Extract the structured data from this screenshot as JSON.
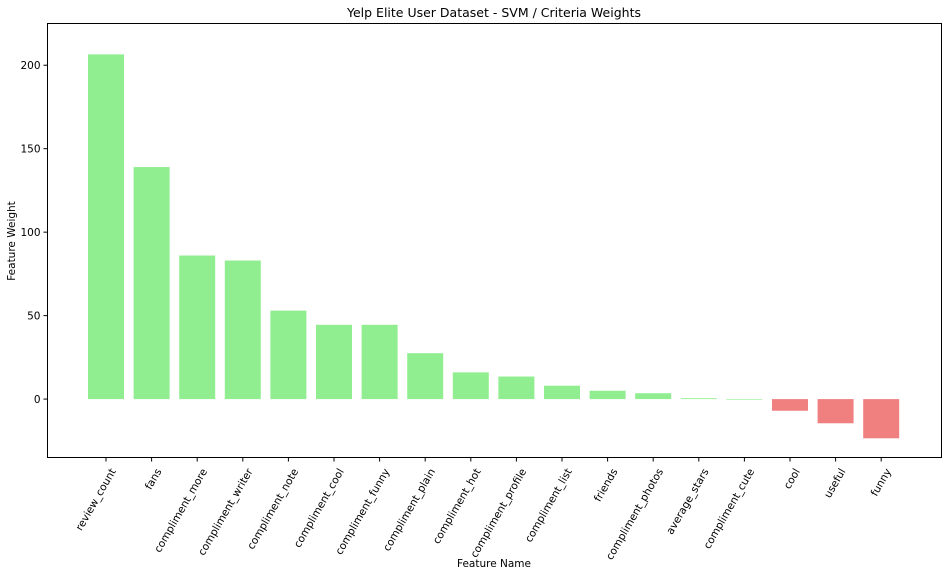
{
  "chart_data": {
    "type": "bar",
    "title": "Yelp Elite User Dataset - SVM / Criteria Weights",
    "xlabel": "Feature Name",
    "ylabel": "Feature Weight",
    "ylim": [
      -35,
      225
    ],
    "yticks": [
      0,
      50,
      100,
      150,
      200
    ],
    "grid": false,
    "categories": [
      "review_count",
      "fans",
      "compliment_more",
      "compliment_writer",
      "compliment_note",
      "compliment_cool",
      "compliment_funny",
      "compliment_plain",
      "compliment_hot",
      "compliment_profile",
      "compliment_list",
      "friends",
      "compliment_photos",
      "average_stars",
      "compliment_cute",
      "cool",
      "useful",
      "funny"
    ],
    "values": [
      206.5,
      139,
      86,
      83,
      53,
      44.5,
      44.5,
      27.5,
      16,
      13.5,
      8,
      5,
      3.5,
      0.5,
      0,
      -7,
      -14.5,
      -23.5
    ],
    "colors": {
      "positive": "#90ee90",
      "negative": "#f08080"
    }
  }
}
